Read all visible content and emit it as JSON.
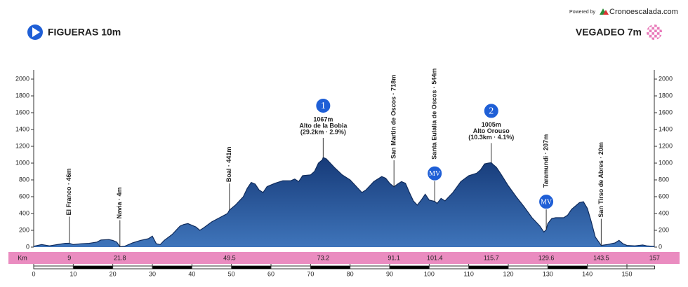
{
  "chart_data": {
    "type": "area",
    "powered_by": "Powered by",
    "brand": "Cronoescalada.com",
    "start": "FIGUERAS 10m",
    "finish": "VEGADEO 7m",
    "km_label": "Km",
    "color": "#234f91",
    "x": [
      0,
      2,
      4,
      6,
      8,
      9,
      10,
      12,
      14,
      16,
      17,
      19,
      20,
      21,
      21.8,
      23,
      25,
      27,
      29,
      30,
      31,
      32,
      33,
      35,
      37,
      38,
      39,
      40,
      41,
      42,
      43,
      45,
      47,
      49,
      49.5,
      51,
      53,
      54,
      55,
      56,
      57,
      58,
      59,
      61,
      63,
      65,
      66,
      67,
      68,
      70,
      71,
      72,
      73,
      73.2,
      74,
      75,
      76,
      78,
      80,
      82,
      83,
      84,
      86,
      88,
      89,
      90,
      91.1,
      92,
      93,
      94,
      95,
      96,
      97,
      98,
      99,
      100,
      101.4,
      102,
      103,
      104,
      106,
      108,
      110,
      112,
      113,
      114,
      115,
      115.7,
      116,
      117,
      118,
      120,
      122,
      124,
      126,
      128,
      129,
      129.6,
      130,
      131,
      132,
      134,
      135,
      136,
      138,
      139,
      140,
      141,
      142,
      143.5,
      145,
      147,
      148,
      149,
      150,
      152,
      154,
      155,
      157
    ],
    "values": [
      10,
      30,
      15,
      30,
      45,
      46,
      30,
      40,
      45,
      60,
      85,
      90,
      80,
      60,
      4,
      10,
      50,
      80,
      100,
      130,
      40,
      30,
      80,
      150,
      250,
      270,
      280,
      260,
      240,
      200,
      230,
      300,
      350,
      400,
      441,
      500,
      600,
      700,
      770,
      750,
      680,
      650,
      720,
      760,
      790,
      790,
      810,
      780,
      850,
      860,
      900,
      1000,
      1040,
      1067,
      1050,
      1000,
      950,
      860,
      800,
      700,
      650,
      680,
      780,
      840,
      820,
      760,
      718,
      750,
      780,
      760,
      650,
      550,
      500,
      560,
      630,
      560,
      544,
      520,
      580,
      550,
      650,
      780,
      850,
      880,
      920,
      990,
      1000,
      1005,
      990,
      950,
      880,
      730,
      600,
      480,
      350,
      250,
      180,
      207,
      280,
      340,
      350,
      350,
      380,
      450,
      530,
      540,
      460,
      300,
      120,
      20,
      30,
      50,
      80,
      40,
      20,
      15,
      25,
      15,
      7
    ],
    "xlim": [
      0,
      157
    ],
    "xticks": [
      0,
      10,
      20,
      30,
      40,
      50,
      60,
      70,
      80,
      90,
      100,
      110,
      120,
      130,
      140,
      150
    ],
    "ylim": [
      0,
      2000
    ],
    "yticks": [
      0,
      200,
      400,
      600,
      800,
      1000,
      1200,
      1400,
      1600,
      1800,
      2000
    ],
    "waypoints": [
      {
        "km": 9,
        "label": "El Franco · 46m"
      },
      {
        "km": 21.8,
        "label": "Navia · 4m"
      },
      {
        "km": 49.5,
        "label": "Boal · 441m"
      },
      {
        "km": 73.2,
        "badge": "1",
        "lines": [
          "1067m",
          "Alto de la Bobia",
          "(29.2km · 2.9%)"
        ]
      },
      {
        "km": 91.1,
        "label": "San Martin de Oscos · 718m"
      },
      {
        "km": 101.4,
        "label": "Santa Eulalia de Oscos · 544m",
        "badge": "MV"
      },
      {
        "km": 115.7,
        "badge": "2",
        "lines": [
          "1005m",
          "Alto Orouso",
          "(10.3km · 4.1%)"
        ]
      },
      {
        "km": 129.6,
        "label": "Taramundi · 207m",
        "badge": "MV"
      },
      {
        "km": 143.5,
        "label": "San Tirso de Abres · 20m"
      },
      {
        "km": 157
      }
    ]
  }
}
